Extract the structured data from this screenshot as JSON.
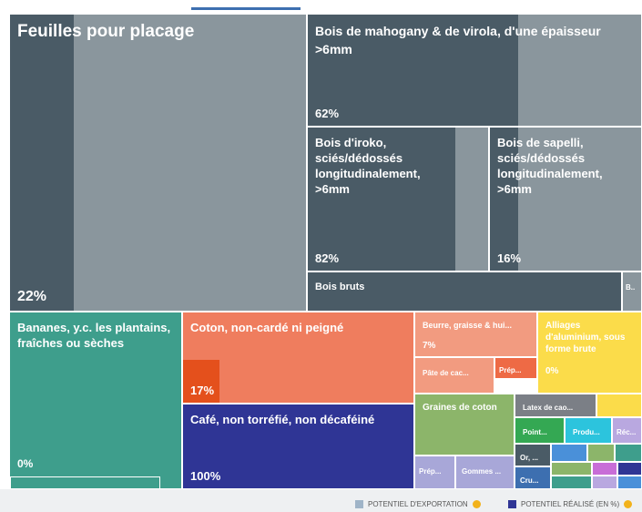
{
  "tiles": [
    {
      "label": "Feuilles pour placage",
      "percent": "22%"
    },
    {
      "label": "Bois de mahogany & de virola, d'une épaisseur >6mm",
      "percent": "62%"
    },
    {
      "label": "Bois d'iroko, sciés/dédossés longitudinalement, >6mm",
      "percent": "82%"
    },
    {
      "label": "Bois de sapelli, sciés/dédossés longitudinalement, >6mm",
      "percent": "16%"
    },
    {
      "label": "Bois bruts"
    },
    {
      "label": "B.."
    },
    {
      "label": "Bananes, y.c. les plantains, fraîches ou sèches",
      "percent": "0%"
    },
    {
      "label": "Coton, non-cardé ni peigné",
      "percent": "17%"
    },
    {
      "label": "Café, non torréfié, non décaféiné",
      "percent": "100%"
    },
    {
      "label": "Beurre, graisse & hui...",
      "percent": "7%"
    },
    {
      "label": "Pâte de cac..."
    },
    {
      "label": "Prép..."
    },
    {
      "label": "Alliages d'aluminium, sous forme brute",
      "percent": "0%"
    },
    {
      "label": "Graines de coton"
    },
    {
      "label": "Prép..."
    },
    {
      "label": "Gommes ..."
    },
    {
      "label": "Latex de cao..."
    },
    {
      "label": "Point..."
    },
    {
      "label": "Produ..."
    },
    {
      "label": "Réc..."
    },
    {
      "label": "Or, ..."
    },
    {
      "label": "Cru..."
    }
  ],
  "legend": [
    "POTENTIEL D'EXPORTATION",
    "POTENTIEL RÉALISÉ (EN %)"
  ]
}
